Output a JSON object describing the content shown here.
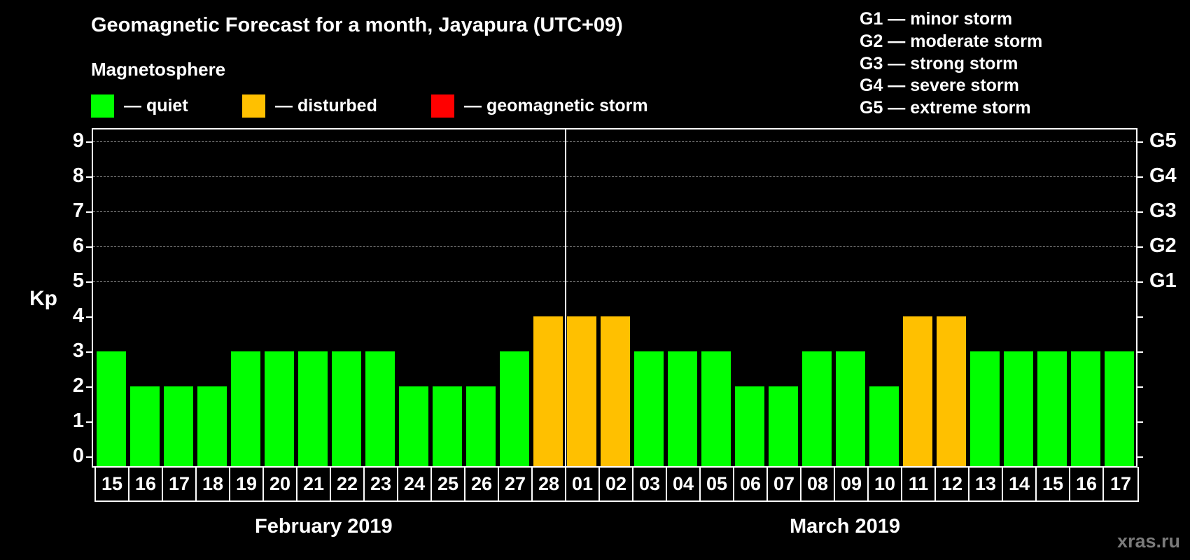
{
  "title": "Geomagnetic Forecast for a month, Jayapura (UTC+09)",
  "legend": {
    "heading": "Magnetosphere",
    "items": [
      {
        "label": "— quiet",
        "color": "#00ff00"
      },
      {
        "label": "— disturbed",
        "color": "#ffc000"
      },
      {
        "label": "— geomagnetic storm",
        "color": "#ff0000"
      }
    ]
  },
  "g_scale": [
    "G1 — minor storm",
    "G2 — moderate storm",
    "G3 — strong storm",
    "G4 — severe storm",
    "G5 — extreme storm"
  ],
  "axis": {
    "y_label": "Kp",
    "y_ticks": [
      "0",
      "1",
      "2",
      "3",
      "4",
      "5",
      "6",
      "7",
      "8",
      "9"
    ],
    "right_ticks": [
      {
        "kp": 5,
        "label": "G1"
      },
      {
        "kp": 6,
        "label": "G2"
      },
      {
        "kp": 7,
        "label": "G3"
      },
      {
        "kp": 8,
        "label": "G4"
      },
      {
        "kp": 9,
        "label": "G5"
      }
    ]
  },
  "months": [
    {
      "label": "February 2019"
    },
    {
      "label": "March 2019"
    }
  ],
  "watermark": "xras.ru",
  "colors": {
    "quiet": "#00ff00",
    "disturbed": "#ffc000",
    "storm": "#ff0000",
    "grid": "#888888"
  },
  "chart_data": {
    "type": "bar",
    "title": "Geomagnetic Forecast for a month, Jayapura (UTC+09)",
    "xlabel": "February 2019 / March 2019",
    "ylabel": "Kp",
    "ylim": [
      0,
      9
    ],
    "grid": "dashed horizontal at Kp 5-9",
    "categories": [
      "15",
      "16",
      "17",
      "18",
      "19",
      "20",
      "21",
      "22",
      "23",
      "24",
      "25",
      "26",
      "27",
      "28",
      "01",
      "02",
      "03",
      "04",
      "05",
      "06",
      "07",
      "08",
      "09",
      "10",
      "11",
      "12",
      "13",
      "14",
      "15",
      "16",
      "17"
    ],
    "values": [
      3,
      2,
      2,
      2,
      3,
      3,
      3,
      3,
      3,
      2,
      2,
      2,
      3,
      4,
      4,
      4,
      3,
      3,
      3,
      2,
      2,
      3,
      3,
      2,
      4,
      4,
      3,
      3,
      3,
      3,
      3
    ],
    "status": [
      "quiet",
      "quiet",
      "quiet",
      "quiet",
      "quiet",
      "quiet",
      "quiet",
      "quiet",
      "quiet",
      "quiet",
      "quiet",
      "quiet",
      "quiet",
      "disturbed",
      "disturbed",
      "disturbed",
      "quiet",
      "quiet",
      "quiet",
      "quiet",
      "quiet",
      "quiet",
      "quiet",
      "quiet",
      "disturbed",
      "disturbed",
      "quiet",
      "quiet",
      "quiet",
      "quiet",
      "quiet"
    ],
    "legend": [
      "quiet",
      "disturbed",
      "geomagnetic storm"
    ],
    "secondary_axis": {
      "5": "G1",
      "6": "G2",
      "7": "G3",
      "8": "G4",
      "9": "G5"
    }
  }
}
